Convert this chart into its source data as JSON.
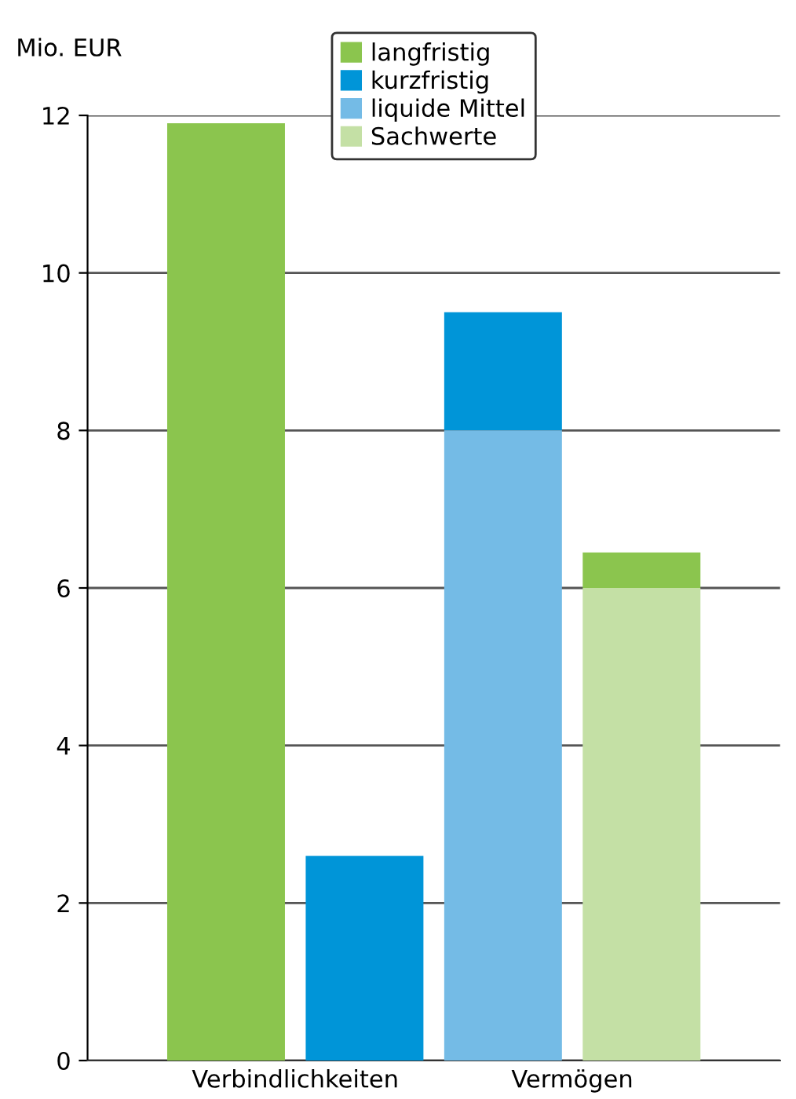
{
  "chart_data": {
    "type": "bar",
    "ylabel": "Mio. EUR",
    "categories": [
      null,
      null,
      null,
      null
    ],
    "annotations": [
      "Verbindlichkeiten",
      "Vermögen"
    ],
    "series": [
      {
        "name": "langfristig",
        "color": "#8bc54e",
        "values": [
          11.9,
          null,
          null,
          0.45
        ],
        "base": [
          0,
          null,
          null,
          6
        ]
      },
      {
        "name": "kurzfristig",
        "color": "#0095d8",
        "values": [
          null,
          2.6,
          1.5,
          null
        ],
        "base": [
          null,
          0,
          8,
          null
        ]
      },
      {
        "name": "liquide Mittel",
        "color": "#74bbe6",
        "values": [
          null,
          null,
          8,
          null
        ],
        "base": [
          null,
          null,
          0,
          null
        ]
      },
      {
        "name": "Sachwerte",
        "color": "#c4e0a5",
        "values": [
          null,
          null,
          null,
          6
        ],
        "base": [
          null,
          null,
          null,
          0
        ]
      }
    ],
    "ylim": [
      0,
      12
    ],
    "yticks": [
      0,
      2,
      4,
      6,
      8,
      10,
      12
    ],
    "grid": "y",
    "legend": "top"
  }
}
